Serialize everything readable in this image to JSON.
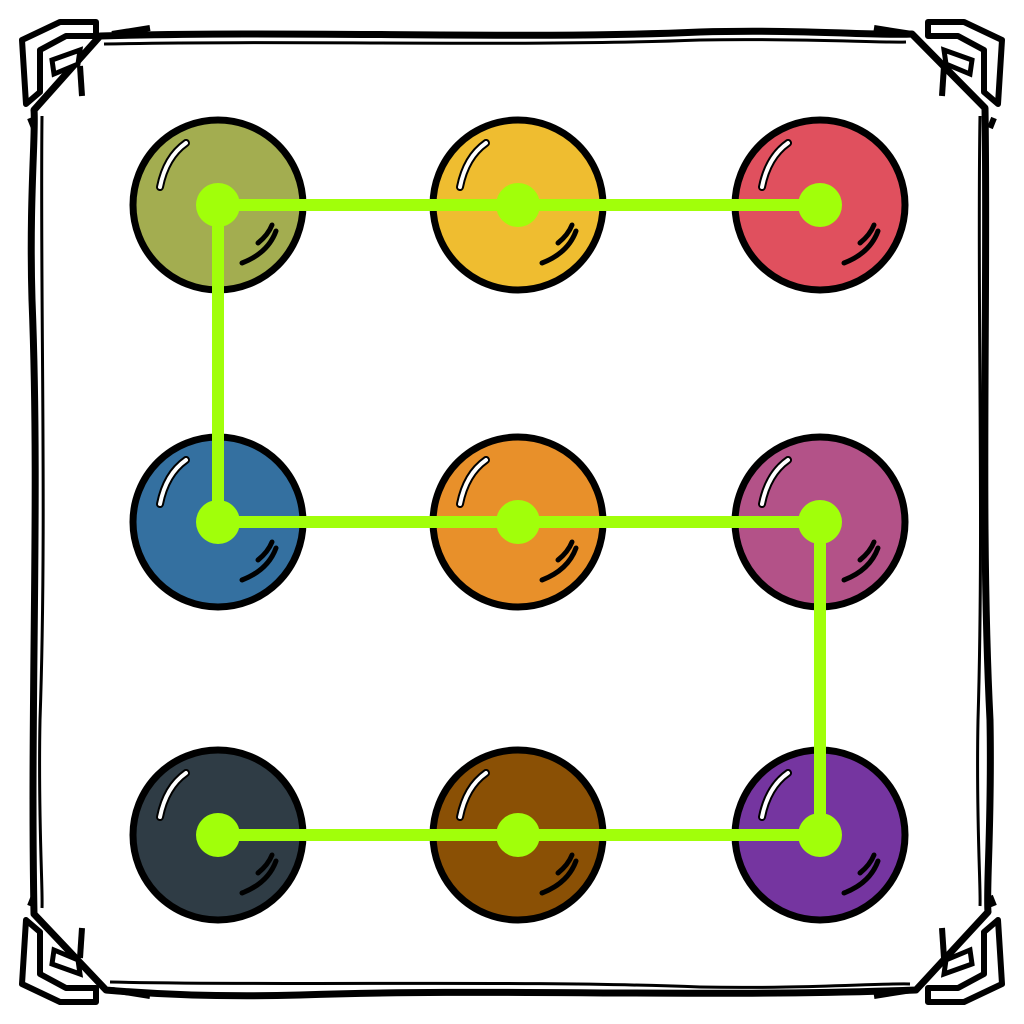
{
  "board": {
    "rows": 3,
    "cols": 3,
    "dots": [
      {
        "id": "dot-1",
        "color": "#a3ad50"
      },
      {
        "id": "dot-2",
        "color": "#efbd30"
      },
      {
        "id": "dot-3",
        "color": "#e0505e"
      },
      {
        "id": "dot-4",
        "color": "#3470a0"
      },
      {
        "id": "dot-5",
        "color": "#e8902a"
      },
      {
        "id": "dot-6",
        "color": "#b35288"
      },
      {
        "id": "dot-7",
        "color": "#2f3c45"
      },
      {
        "id": "dot-8",
        "color": "#8a5005"
      },
      {
        "id": "dot-9",
        "color": "#7535a0"
      }
    ]
  },
  "pattern": {
    "sequence": [
      3,
      2,
      1,
      4,
      5,
      6,
      9,
      8,
      7
    ],
    "line_color": "#a1ff0a"
  },
  "colors": {
    "outline": "#000000",
    "frame": "#000000",
    "background": "#ffffff",
    "highlight": "#ffffff"
  },
  "icons": {
    "frame_corner": "celtic-corner-ornament-icon"
  }
}
